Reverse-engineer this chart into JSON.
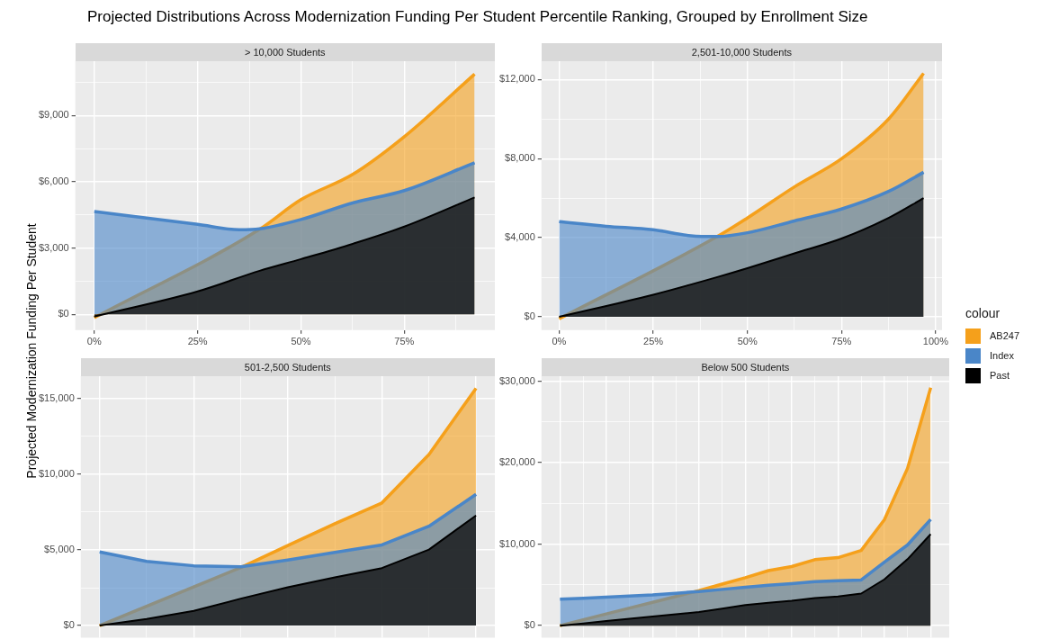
{
  "chart_data": [
    {
      "type": "area",
      "title": "Projected Distributions Across Modernization Funding Per Student Percentile Ranking, Grouped by Enrollment Size",
      "subtitle": "> 10,000 Students",
      "ylabel": "Projected Modernization Funding Per Student",
      "legend": "right",
      "legend_title": "colour",
      "grid": true,
      "xlim": [
        -4.6,
        96.9
      ],
      "xticks": [
        {
          "value": 0,
          "label": "0%"
        },
        {
          "value": 12.5,
          "label": null
        },
        {
          "value": 25,
          "label": "25%"
        },
        {
          "value": 37.5,
          "label": null
        },
        {
          "value": 50,
          "label": "50%"
        },
        {
          "value": 62.5,
          "label": null
        },
        {
          "value": 75,
          "label": "75%"
        },
        {
          "value": 87.5,
          "label": null
        }
      ],
      "ylim": [
        -714,
        11470
      ],
      "yticks": [
        {
          "value": 0,
          "label": "$0"
        },
        {
          "value": 1500,
          "label": null
        },
        {
          "value": 3000,
          "label": "$3,000"
        },
        {
          "value": 4500,
          "label": null
        },
        {
          "value": 6000,
          "label": "$6,000"
        },
        {
          "value": 7500,
          "label": null
        },
        {
          "value": 9000,
          "label": "$9,000"
        },
        {
          "value": 10500,
          "label": null
        }
      ],
      "series": [
        {
          "name": "AB247",
          "color": "#f5a01b",
          "x": [
            0,
            40,
            50,
            62.5,
            75,
            92
          ],
          "values": [
            -150,
            3850,
            5190,
            6330,
            8040,
            10870
          ]
        },
        {
          "name": "Index",
          "color": "#4a86c8",
          "x": [
            0,
            25,
            35,
            40,
            50,
            62.5,
            75,
            92
          ],
          "values": [
            4650,
            4070,
            3830,
            3870,
            4290,
            5040,
            5600,
            6860
          ]
        },
        {
          "name": "Past",
          "color": "#000000",
          "x": [
            0,
            25,
            40,
            50,
            62.5,
            75,
            92
          ],
          "values": [
            -100,
            1040,
            1970,
            2500,
            3190,
            3970,
            5290
          ]
        }
      ]
    },
    {
      "type": "area",
      "subtitle": "2,501-10,000 Students",
      "grid": true,
      "xlim": [
        -4.7,
        101.7
      ],
      "xticks": [
        {
          "value": 0,
          "label": "0%"
        },
        {
          "value": 12.5,
          "label": null
        },
        {
          "value": 25,
          "label": "25%"
        },
        {
          "value": 37.5,
          "label": null
        },
        {
          "value": 50,
          "label": "50%"
        },
        {
          "value": 62.5,
          "label": null
        },
        {
          "value": 75,
          "label": "75%"
        },
        {
          "value": 87.5,
          "label": null
        },
        {
          "value": 100,
          "label": "100%"
        }
      ],
      "ylim": [
        -670,
        12940
      ],
      "yticks": [
        {
          "value": 0,
          "label": "$0"
        },
        {
          "value": 2000,
          "label": null
        },
        {
          "value": 4000,
          "label": "$4,000"
        },
        {
          "value": 6000,
          "label": null
        },
        {
          "value": 8000,
          "label": "$8,000"
        },
        {
          "value": 10000,
          "label": null
        },
        {
          "value": 12000,
          "label": "$12,000"
        }
      ],
      "series": [
        {
          "color": "#f5a01b",
          "x": [
            0,
            42,
            50,
            62.5,
            75,
            87.5,
            96.8
          ],
          "values": [
            -100,
            4060,
            5000,
            6570,
            7990,
            10000,
            12310
          ]
        },
        {
          "color": "#4a86c8",
          "x": [
            0,
            12.5,
            25,
            35,
            42,
            50,
            62.5,
            75,
            87.5,
            96.8
          ],
          "values": [
            4810,
            4580,
            4400,
            4100,
            4060,
            4250,
            4850,
            5450,
            6340,
            7310
          ]
        },
        {
          "color": "#000000",
          "x": [
            0,
            25,
            42,
            50,
            62.5,
            75,
            87.5,
            96.8
          ],
          "values": [
            0,
            1120,
            2010,
            2460,
            3210,
            3960,
            5000,
            6000
          ]
        }
      ]
    },
    {
      "type": "area",
      "subtitle": "501-2,500 Students",
      "grid": true,
      "tick_labels": "y",
      "categories": [
        null,
        null,
        null,
        null,
        null,
        null,
        null,
        null,
        null
      ],
      "ylim": [
        -790,
        16490
      ],
      "yticks": [
        {
          "value": 0,
          "label": "$0"
        },
        {
          "value": 2500,
          "label": null
        },
        {
          "value": 5000,
          "label": "$5,000"
        },
        {
          "value": 7500,
          "label": null
        },
        {
          "value": 10000,
          "label": "$10,000"
        },
        {
          "value": 12500,
          "label": null
        },
        {
          "value": 15000,
          "label": "$15,000"
        }
      ],
      "series": [
        {
          "color": "#f5a01b",
          "values": [
            0,
            1280,
            2560,
            3830,
            5290,
            6730,
            8100,
            11300,
            15670
          ]
        },
        {
          "color": "#4a86c8",
          "values": [
            4860,
            4240,
            3950,
            3880,
            4330,
            4830,
            5330,
            6560,
            8670
          ]
        },
        {
          "color": "#000000",
          "values": [
            0,
            440,
            970,
            1780,
            2530,
            3180,
            3800,
            5020,
            7270
          ]
        }
      ]
    },
    {
      "type": "area",
      "subtitle": "Below 500 Students",
      "grid": true,
      "tick_labels": "y",
      "categories": [
        null,
        null,
        null,
        null,
        null,
        null,
        null,
        null,
        null,
        null,
        null,
        null,
        null,
        null,
        null,
        null,
        null
      ],
      "ylim": [
        -1460,
        30650
      ],
      "yticks": [
        {
          "value": 0,
          "label": "$0"
        },
        {
          "value": 5000,
          "label": null
        },
        {
          "value": 10000,
          "label": "$10,000"
        },
        {
          "value": 15000,
          "label": null
        },
        {
          "value": 20000,
          "label": "$20,000"
        },
        {
          "value": 25000,
          "label": null
        },
        {
          "value": 30000,
          "label": "$30,000"
        }
      ],
      "series": [
        {
          "color": "#f5a01b",
          "values": [
            0,
            720,
            1440,
            2160,
            2860,
            3580,
            4300,
            5100,
            5880,
            6760,
            7250,
            8100,
            8350,
            9230,
            13000,
            19300,
            29190
          ]
        },
        {
          "color": "#4a86c8",
          "values": [
            3240,
            3370,
            3500,
            3640,
            3770,
            3980,
            4190,
            4450,
            4720,
            4950,
            5150,
            5400,
            5520,
            5600,
            7800,
            9900,
            13030
          ]
        },
        {
          "color": "#000000",
          "values": [
            0,
            280,
            560,
            850,
            1130,
            1400,
            1680,
            2100,
            2540,
            2800,
            3050,
            3400,
            3580,
            3940,
            5680,
            8150,
            11230
          ]
        }
      ]
    }
  ]
}
